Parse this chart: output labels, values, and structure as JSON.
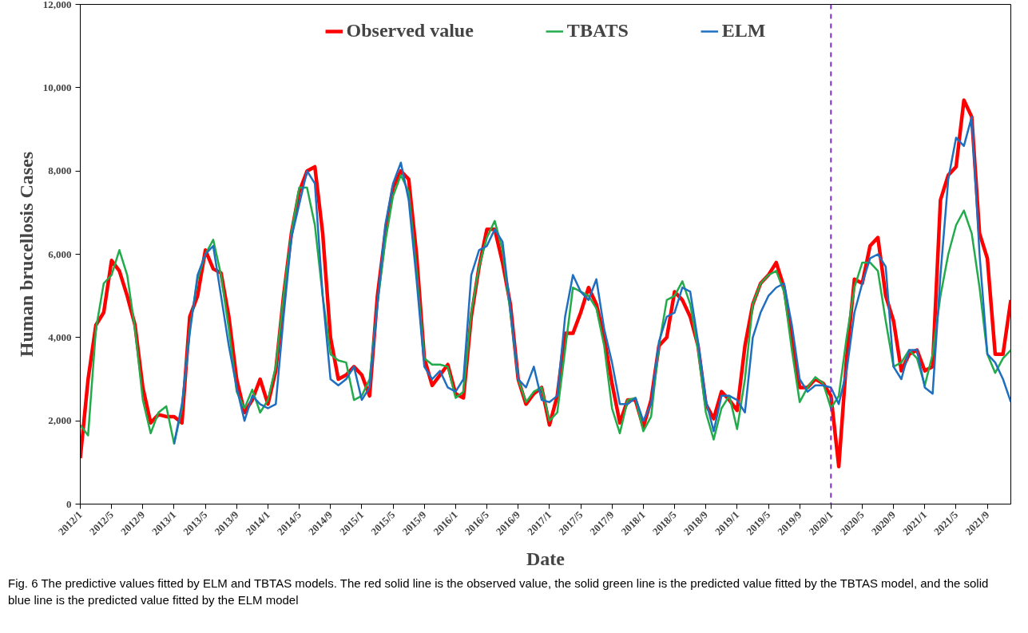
{
  "chart_data": {
    "type": "line",
    "xlabel": "Date",
    "ylabel": "Human brucellosis Cases",
    "annotations": [
      "Fig. 6  The predictive values fitted by ELM and TBTAS models. The red solid line is the observed value, the solid green line is the predicted value fitted by the TBTAS model, and the solid blue line is the predicted value fitted by the ELM model"
    ],
    "x": [
      "2012-01",
      "2012-02",
      "2012-03",
      "2012-04",
      "2012-05",
      "2012-06",
      "2012-07",
      "2012-08",
      "2012-09",
      "2012-10",
      "2012-11",
      "2012-12",
      "2013-01",
      "2013-02",
      "2013-03",
      "2013-04",
      "2013-05",
      "2013-06",
      "2013-07",
      "2013-08",
      "2013-09",
      "2013-10",
      "2013-11",
      "2013-12",
      "2014-01",
      "2014-02",
      "2014-03",
      "2014-04",
      "2014-05",
      "2014-06",
      "2014-07",
      "2014-08",
      "2014-09",
      "2014-10",
      "2014-11",
      "2014-12",
      "2015-01",
      "2015-02",
      "2015-03",
      "2015-04",
      "2015-05",
      "2015-06",
      "2015-07",
      "2015-08",
      "2015-09",
      "2015-10",
      "2015-11",
      "2015-12",
      "2016-01",
      "2016-02",
      "2016-03",
      "2016-04",
      "2016-05",
      "2016-06",
      "2016-07",
      "2016-08",
      "2016-09",
      "2016-10",
      "2016-11",
      "2016-12",
      "2017-01",
      "2017-02",
      "2017-03",
      "2017-04",
      "2017-05",
      "2017-06",
      "2017-07",
      "2017-08",
      "2017-09",
      "2017-10",
      "2017-11",
      "2017-12",
      "2018-01",
      "2018-02",
      "2018-03",
      "2018-04",
      "2018-05",
      "2018-06",
      "2018-07",
      "2018-08",
      "2018-09",
      "2018-10",
      "2018-11",
      "2018-12",
      "2019-01",
      "2019-02",
      "2019-03",
      "2019-04",
      "2019-05",
      "2019-06",
      "2019-07",
      "2019-08",
      "2019-09",
      "2019-10",
      "2019-11",
      "2019-12",
      "2020-01",
      "2020-02",
      "2020-03",
      "2020-04",
      "2020-05",
      "2020-06",
      "2020-07",
      "2020-08",
      "2020-09",
      "2020-10",
      "2020-11",
      "2020-12",
      "2021-01",
      "2021-02",
      "2021-03",
      "2021-04",
      "2021-05",
      "2021-06",
      "2021-07",
      "2021-08",
      "2021-09",
      "2021-10",
      "2021-11",
      "2021-12"
    ],
    "series": [
      {
        "name": "Observed value",
        "color": "#ff0000",
        "values": [
          1100,
          3000,
          4300,
          4600,
          5850,
          5600,
          5000,
          4300,
          2800,
          1950,
          2150,
          2100,
          2100,
          1950,
          4500,
          5000,
          6100,
          5650,
          5550,
          4500,
          3000,
          2200,
          2500,
          3000,
          2400,
          3200,
          5000,
          6500,
          7500,
          8000,
          8100,
          6500,
          4000,
          3000,
          3100,
          3300,
          3100,
          2600,
          5000,
          6500,
          7600,
          8000,
          7800,
          6000,
          3500,
          2850,
          3100,
          3350,
          2650,
          2550,
          4500,
          5700,
          6600,
          6600,
          5800,
          4800,
          3000,
          2400,
          2650,
          2800,
          1900,
          2600,
          4100,
          4100,
          4600,
          5200,
          4800,
          4000,
          2900,
          1950,
          2500,
          2500,
          1850,
          2500,
          3800,
          4000,
          5100,
          4900,
          4500,
          3800,
          2400,
          2050,
          2700,
          2500,
          2250,
          3800,
          4800,
          5300,
          5500,
          5800,
          5200,
          4000,
          2800,
          2800,
          3000,
          2900,
          2600,
          900,
          3500,
          5400,
          5300,
          6200,
          6400,
          5000,
          4400,
          3200,
          3600,
          3700,
          3200,
          3300,
          7300,
          7900,
          8100,
          9700,
          9300,
          6500,
          5900,
          3600,
          3600,
          4900
        ]
      },
      {
        "name": "TBATS",
        "color": "#22ab4a",
        "values": [
          1900,
          1650,
          4200,
          5300,
          5500,
          6100,
          5500,
          4200,
          2500,
          1700,
          2200,
          2350,
          1450,
          2300,
          4200,
          5400,
          6000,
          6350,
          5500,
          4200,
          2700,
          2300,
          2750,
          2200,
          2500,
          3300,
          5000,
          6500,
          7600,
          7600,
          6700,
          5000,
          3600,
          3450,
          3400,
          2500,
          2600,
          3000,
          4800,
          6300,
          7400,
          7900,
          7500,
          5600,
          3500,
          3350,
          3350,
          3300,
          2550,
          2700,
          4600,
          5700,
          6400,
          6800,
          6100,
          4600,
          3000,
          2450,
          2700,
          2800,
          2000,
          2200,
          3700,
          5200,
          5100,
          5000,
          4700,
          3800,
          2300,
          1700,
          2500,
          2550,
          1750,
          2100,
          3800,
          4900,
          5000,
          5350,
          4800,
          3700,
          2200,
          1550,
          2300,
          2600,
          1800,
          3000,
          4800,
          5300,
          5500,
          5600,
          5100,
          3700,
          2450,
          2800,
          3050,
          2900,
          2300,
          2600,
          4000,
          5200,
          5800,
          5800,
          5600,
          4400,
          3300,
          3400,
          3700,
          3500,
          2850,
          3600,
          5000,
          6000,
          6700,
          7050,
          6500,
          5200,
          3600,
          3150,
          3500,
          3700
        ]
      },
      {
        "name": "ELM",
        "color": "#1f6fc0",
        "values": [
          null,
          null,
          null,
          null,
          null,
          null,
          null,
          null,
          null,
          null,
          null,
          null,
          1450,
          2400,
          4100,
          5500,
          6000,
          6200,
          5000,
          3800,
          2800,
          2000,
          2600,
          2400,
          2300,
          2400,
          4500,
          6400,
          7200,
          8000,
          7700,
          5000,
          3000,
          2850,
          3000,
          3300,
          2500,
          2800,
          4800,
          6700,
          7700,
          8200,
          7300,
          5400,
          3300,
          3000,
          3200,
          2800,
          2700,
          3000,
          5500,
          6100,
          6200,
          6600,
          6300,
          4700,
          3000,
          2800,
          3300,
          2500,
          2450,
          2600,
          4500,
          5500,
          5100,
          4900,
          5400,
          4200,
          3400,
          2400,
          2400,
          2550,
          2000,
          2400,
          3900,
          4500,
          4600,
          5200,
          5100,
          3900,
          2500,
          1750,
          2600,
          2600,
          2500,
          2200,
          4000,
          4600,
          5000,
          5200,
          5300,
          4300,
          3000,
          2700,
          2850,
          2850,
          2800,
          2400,
          3200,
          4600,
          5300,
          5900,
          6000,
          5700,
          3300,
          3000,
          3700,
          3700,
          2800,
          2650,
          5500,
          7800,
          8800,
          8600,
          9300,
          6000,
          3600,
          3400,
          3000,
          2450
        ]
      }
    ],
    "xlim": [
      "2012-01",
      "2021-12"
    ],
    "xticks": [
      {
        "value": "2012-01",
        "label": "2012/1"
      },
      {
        "value": "2012-05",
        "label": "2012/5"
      },
      {
        "value": "2012-09",
        "label": "2012/9"
      },
      {
        "value": "2013-01",
        "label": "2013/1"
      },
      {
        "value": "2013-05",
        "label": "2013/5"
      },
      {
        "value": "2013-09",
        "label": "2013/9"
      },
      {
        "value": "2014-01",
        "label": "2014/1"
      },
      {
        "value": "2014-05",
        "label": "2014/5"
      },
      {
        "value": "2014-09",
        "label": "2014/9"
      },
      {
        "value": "2015-01",
        "label": "2015/1"
      },
      {
        "value": "2015-05",
        "label": "2015/5"
      },
      {
        "value": "2015-09",
        "label": "2015/9"
      },
      {
        "value": "2016-01",
        "label": "2016/1"
      },
      {
        "value": "2016-05",
        "label": "2016/5"
      },
      {
        "value": "2016-09",
        "label": "2016/9"
      },
      {
        "value": "2017-01",
        "label": "2017/1"
      },
      {
        "value": "2017-05",
        "label": "2017/5"
      },
      {
        "value": "2017-09",
        "label": "2017/9"
      },
      {
        "value": "2018-01",
        "label": "2018/1"
      },
      {
        "value": "2018-05",
        "label": "2018/5"
      },
      {
        "value": "2018-09",
        "label": "2018/9"
      },
      {
        "value": "2019-01",
        "label": "2019/1"
      },
      {
        "value": "2019-05",
        "label": "2019/5"
      },
      {
        "value": "2019-09",
        "label": "2019/9"
      },
      {
        "value": "2020-01",
        "label": "2020/1"
      },
      {
        "value": "2020-05",
        "label": "2020/5"
      },
      {
        "value": "2020-09",
        "label": "2020/9"
      },
      {
        "value": "2021-01",
        "label": "2021/1"
      },
      {
        "value": "2021-05",
        "label": "2021/5"
      },
      {
        "value": "2021-09",
        "label": "2021/9"
      }
    ],
    "ylim": [
      0,
      12000
    ],
    "yticks": [
      0,
      {
        "value": 2000,
        "label": "2,000"
      },
      {
        "value": 4000,
        "label": "4,000"
      },
      {
        "value": 6000,
        "label": "6,000"
      },
      {
        "value": 8000,
        "label": "8,000"
      },
      {
        "value": 10000,
        "label": "10,000"
      },
      {
        "value": 12000,
        "label": "12,000"
      }
    ],
    "ref_lines": [
      {
        "axis": "x",
        "value": "2020-01",
        "color": "#7b2fbe",
        "line_style": "dashed"
      }
    ],
    "grid": false,
    "legend": "top",
    "line_style": "solid"
  }
}
